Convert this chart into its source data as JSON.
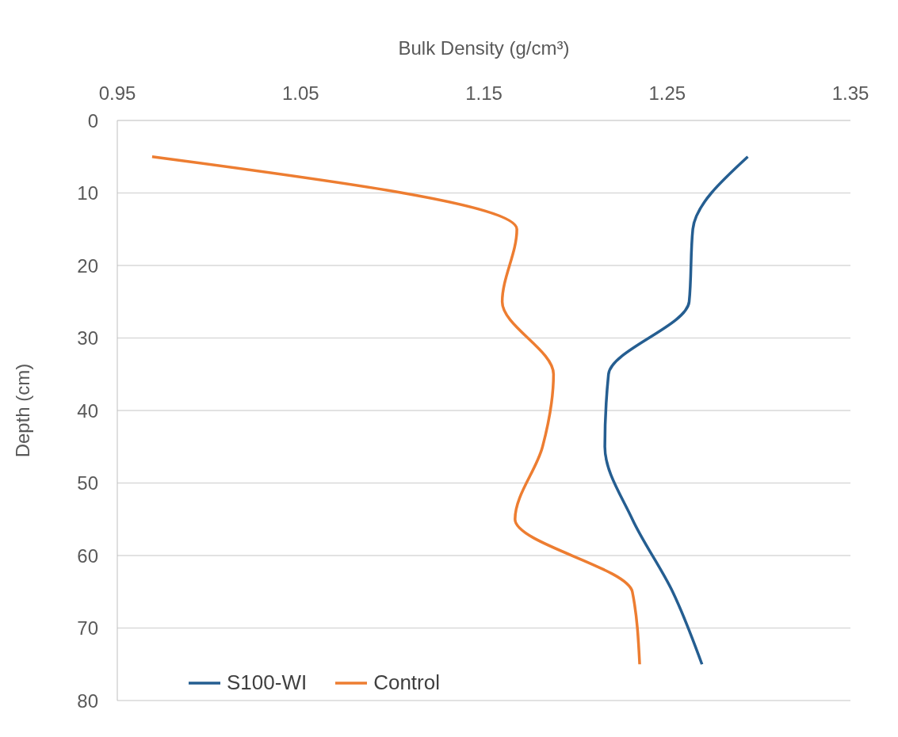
{
  "chart_data": {
    "type": "line",
    "xlabel": "Bulk Density (g/cm³)",
    "ylabel": "Depth (cm)",
    "series": [
      {
        "name": "S100-WI",
        "color": "#255e91",
        "values": [
          5,
          15,
          25,
          35,
          45,
          55,
          65,
          75
        ],
        "x": [
          1.294,
          1.264,
          1.262,
          1.218,
          1.216,
          1.231,
          1.253,
          1.269
        ]
      },
      {
        "name": "Control",
        "color": "#ed7d31",
        "values": [
          5,
          15,
          25,
          35,
          45,
          55,
          65,
          75
        ],
        "x": [
          0.969,
          1.168,
          1.16,
          1.188,
          1.182,
          1.167,
          1.231,
          1.235
        ]
      }
    ],
    "xlim": [
      0.95,
      1.35
    ],
    "xticks": [
      0.95,
      1.05,
      1.15,
      1.25,
      1.35
    ],
    "ylim": [
      80,
      0
    ],
    "yticks": [
      0,
      10,
      20,
      30,
      40,
      50,
      60,
      70,
      80
    ],
    "grid": "y",
    "legend": "bottom left",
    "marker": "none",
    "line_style": "solid"
  }
}
